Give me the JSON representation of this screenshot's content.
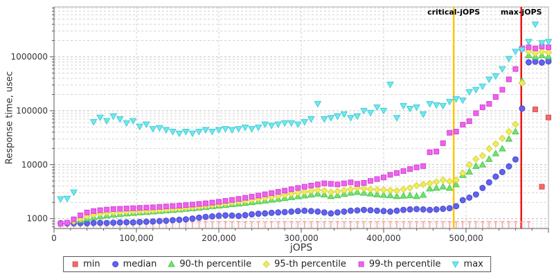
{
  "chart_data": {
    "type": "scatter",
    "title": "",
    "xlabel": "jOPS",
    "ylabel": "Response time, usec",
    "grid": true,
    "legend_position": "bottom",
    "x_axis": {
      "min": 0,
      "max": 600000,
      "minor_step": 20000,
      "ticks": [
        {
          "v": 0,
          "label": "0"
        },
        {
          "v": 100000,
          "label": "100,000"
        },
        {
          "v": 200000,
          "label": "200,000"
        },
        {
          "v": 300000,
          "label": "300,000"
        },
        {
          "v": 400000,
          "label": "400,000"
        },
        {
          "v": 500000,
          "label": "500,000"
        }
      ]
    },
    "y_axis": {
      "scale": "log",
      "min": 655,
      "max": 8400000,
      "ticks": [
        {
          "v": 1000,
          "label": "1000"
        },
        {
          "v": 10000,
          "label": "10000"
        },
        {
          "v": 100000,
          "label": "100000"
        },
        {
          "v": 1000000,
          "label": "1000000"
        }
      ]
    },
    "thresholds": [
      {
        "label": "critical-jOPS",
        "x": 485000,
        "color": "#fdc400"
      },
      {
        "label": "max-jOPS",
        "x": 567000,
        "color": "#ed1212"
      }
    ],
    "series": [
      {
        "key": "min",
        "label": "min",
        "shape": "square",
        "color": "#f26a6a",
        "edge": "#d94f4f",
        "whisker": true,
        "whisker_color": "#f8a4a4"
      },
      {
        "key": "median",
        "label": "median",
        "shape": "circle",
        "color": "#6262ed",
        "edge": "#4646cf"
      },
      {
        "key": "p90",
        "label": "90-th percentile",
        "shape": "triangle-up",
        "color": "#72e272",
        "edge": "#4cc94c"
      },
      {
        "key": "p95",
        "label": "95-th percentile",
        "shape": "diamond",
        "color": "#f0ee58",
        "edge": "#d6d03c"
      },
      {
        "key": "p99",
        "label": "99-th percentile",
        "shape": "square",
        "color": "#ee63ee",
        "edge": "#d443d4"
      },
      {
        "key": "max",
        "label": "max",
        "shape": "triangle-down",
        "color": "#6fe9ef",
        "edge": "#44ccd6"
      }
    ],
    "points": {
      "jops": [
        8000,
        16000,
        24000,
        32000,
        40000,
        48000,
        56000,
        64000,
        72000,
        80000,
        88000,
        96000,
        104000,
        112000,
        120000,
        128000,
        136000,
        144000,
        152000,
        160000,
        168000,
        176000,
        184000,
        192000,
        200000,
        208000,
        216000,
        224000,
        232000,
        240000,
        248000,
        256000,
        264000,
        272000,
        280000,
        288000,
        296000,
        304000,
        312000,
        320000,
        328000,
        336000,
        344000,
        352000,
        360000,
        368000,
        376000,
        384000,
        392000,
        400000,
        408000,
        416000,
        424000,
        432000,
        440000,
        448000,
        456000,
        464000,
        472000,
        480000,
        488000,
        496000,
        504000,
        512000,
        520000,
        528000,
        536000,
        544000,
        552000,
        560000,
        568000,
        576000,
        584000,
        592000,
        600000
      ],
      "min": [
        870,
        870,
        870,
        870,
        870,
        870,
        870,
        870,
        870,
        870,
        870,
        870,
        870,
        870,
        870,
        870,
        870,
        870,
        870,
        870,
        870,
        870,
        870,
        870,
        870,
        870,
        870,
        870,
        870,
        870,
        870,
        870,
        870,
        870,
        870,
        870,
        870,
        870,
        870,
        870,
        870,
        870,
        870,
        870,
        870,
        870,
        870,
        870,
        870,
        870,
        870,
        870,
        870,
        870,
        870,
        870,
        870,
        870,
        870,
        870,
        870,
        870,
        870,
        870,
        870,
        870,
        870,
        870,
        870,
        870,
        870,
        870,
        106000,
        3900,
        75000
      ],
      "median": [
        820,
        815,
        820,
        825,
        820,
        830,
        835,
        830,
        840,
        850,
        855,
        850,
        865,
        875,
        885,
        900,
        915,
        935,
        950,
        970,
        1000,
        1040,
        1075,
        1100,
        1130,
        1150,
        1140,
        1120,
        1160,
        1200,
        1230,
        1250,
        1280,
        1300,
        1320,
        1350,
        1380,
        1400,
        1380,
        1350,
        1300,
        1250,
        1300,
        1350,
        1400,
        1420,
        1450,
        1430,
        1400,
        1380,
        1350,
        1400,
        1450,
        1480,
        1500,
        1480,
        1450,
        1480,
        1520,
        1560,
        1700,
        2200,
        2450,
        2800,
        3700,
        4700,
        6000,
        7300,
        9300,
        12500,
        110000,
        790000,
        810000,
        780000,
        820000
      ],
      "p90": [
        null,
        null,
        null,
        940,
        1000,
        1060,
        1100,
        1140,
        1180,
        1210,
        1240,
        1270,
        1300,
        1320,
        1350,
        1380,
        1410,
        1440,
        1470,
        1510,
        1550,
        1590,
        1640,
        1690,
        1740,
        1790,
        1840,
        1890,
        1950,
        2010,
        2080,
        2150,
        2230,
        2310,
        2400,
        2490,
        2580,
        2680,
        2780,
        2890,
        2790,
        2600,
        2700,
        2850,
        3000,
        3100,
        3000,
        2900,
        2800,
        2750,
        2700,
        2600,
        2650,
        2700,
        2600,
        2750,
        3600,
        3700,
        3900,
        3700,
        4300,
        6400,
        7400,
        9400,
        10000,
        12700,
        16100,
        19800,
        30000,
        41000,
        355000,
        1060000,
        1000000,
        1060000,
        1010000
      ],
      "p95": [
        null,
        null,
        890,
        1000,
        1100,
        1180,
        1240,
        1280,
        1300,
        1320,
        1340,
        1360,
        1380,
        1400,
        1420,
        1450,
        1480,
        1510,
        1540,
        1580,
        1620,
        1670,
        1720,
        1780,
        1840,
        1910,
        1980,
        2060,
        2140,
        2230,
        2320,
        2420,
        2520,
        2630,
        2750,
        2870,
        3000,
        3130,
        3270,
        3420,
        3300,
        3100,
        3200,
        3350,
        3500,
        3700,
        3600,
        3500,
        3450,
        3400,
        3350,
        3300,
        3500,
        3700,
        4100,
        4300,
        4500,
        4800,
        5200,
        4900,
        5200,
        7000,
        10000,
        12700,
        14700,
        19800,
        24300,
        30800,
        41000,
        56000,
        327000,
        1250000,
        1160000,
        1250000,
        1200000
      ],
      "p99": [
        810,
        840,
        970,
        1150,
        1300,
        1380,
        1430,
        1470,
        1500,
        1520,
        1540,
        1560,
        1580,
        1600,
        1620,
        1650,
        1680,
        1710,
        1740,
        1780,
        1820,
        1870,
        1920,
        1980,
        2050,
        2130,
        2220,
        2320,
        2430,
        2550,
        2680,
        2820,
        2970,
        3130,
        3300,
        3500,
        3700,
        3900,
        4100,
        4300,
        4500,
        4400,
        4300,
        4500,
        4700,
        4400,
        4600,
        5000,
        5400,
        5800,
        6500,
        7000,
        7600,
        8300,
        8900,
        9400,
        17000,
        17500,
        25000,
        39000,
        41000,
        55000,
        64000,
        90000,
        116000,
        134000,
        180000,
        245000,
        381000,
        593000,
        1430000,
        1500000,
        1430000,
        1550000,
        1500000
      ],
      "max": [
        2300,
        2350,
        3070,
        null,
        null,
        62000,
        75000,
        65000,
        79000,
        70000,
        59000,
        65000,
        51000,
        56000,
        46000,
        48000,
        44000,
        41000,
        38000,
        41000,
        38000,
        41000,
        44000,
        41000,
        44000,
        46000,
        44000,
        46000,
        49000,
        46000,
        49000,
        56000,
        53000,
        56000,
        59000,
        59000,
        56000,
        62000,
        70000,
        134000,
        70000,
        74000,
        79000,
        86000,
        74000,
        79000,
        100000,
        92000,
        116000,
        100000,
        307000,
        74000,
        123000,
        109000,
        116000,
        86000,
        134000,
        127000,
        123000,
        147000,
        165000,
        156000,
        223000,
        245000,
        283000,
        381000,
        438000,
        593000,
        922000,
        1250000,
        1340000,
        1900000,
        4000000,
        1800000,
        1900000
      ]
    }
  }
}
